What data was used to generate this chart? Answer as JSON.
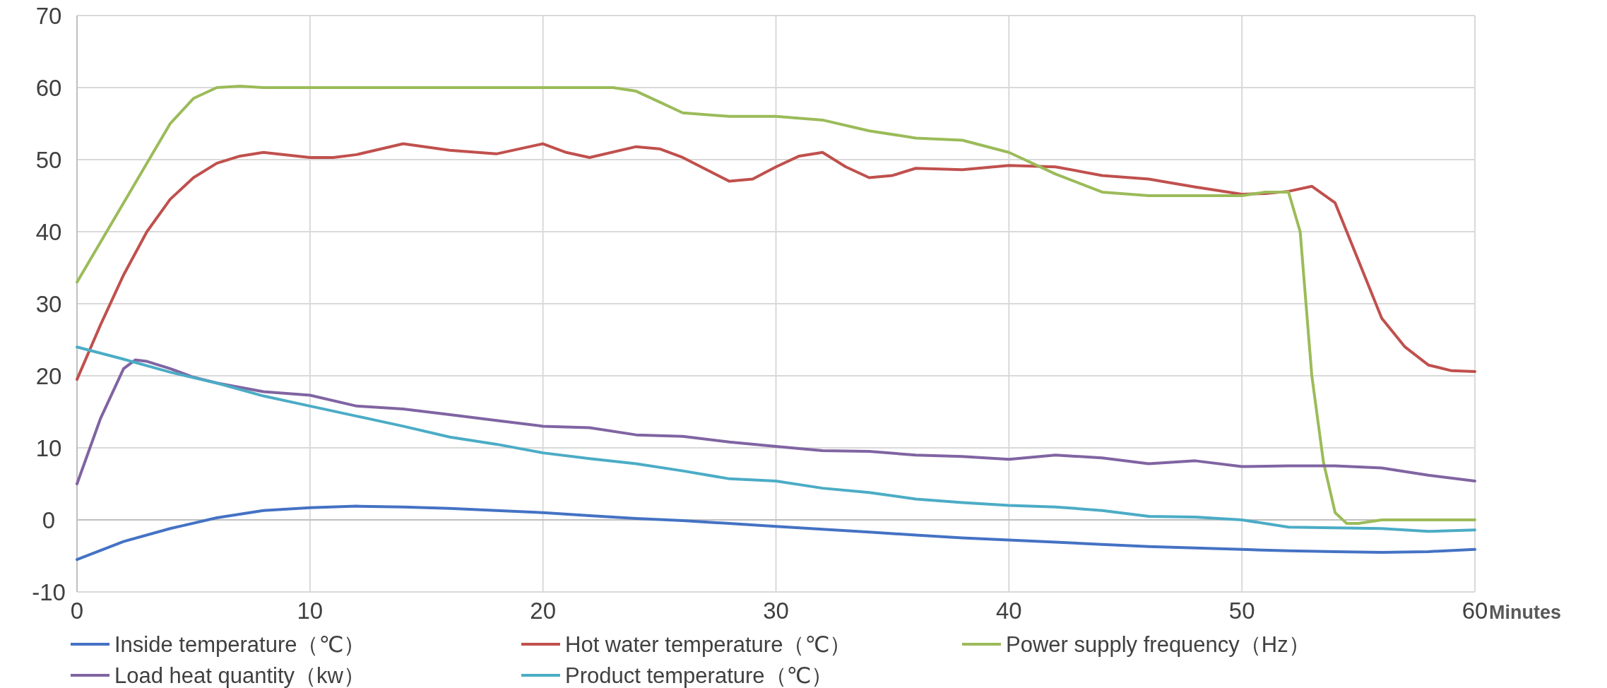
{
  "chart_data": {
    "type": "line",
    "xlabel": "Minutes",
    "xlim": [
      0,
      60
    ],
    "ylim": [
      -10,
      70
    ],
    "xticks": [
      0,
      10,
      20,
      30,
      40,
      50,
      60
    ],
    "yticks": [
      -10,
      0,
      10,
      20,
      30,
      40,
      50,
      60,
      70
    ],
    "grid": true,
    "legend": "bottom",
    "marker": "none",
    "line_style": "solid",
    "series": [
      {
        "name": "Inside temperature（℃）",
        "color": "#4472c4",
        "x": [
          0,
          2,
          4,
          6,
          8,
          10,
          12,
          14,
          16,
          18,
          20,
          22,
          24,
          26,
          28,
          30,
          32,
          34,
          36,
          38,
          40,
          42,
          44,
          46,
          48,
          50,
          52,
          54,
          56,
          58,
          60
        ],
        "values": [
          -5.5,
          -3,
          -1.2,
          0.3,
          1.3,
          1.7,
          1.9,
          1.8,
          1.6,
          1.3,
          1,
          0.6,
          0.2,
          -0.1,
          -0.5,
          -0.9,
          -1.3,
          -1.7,
          -2.1,
          -2.5,
          -2.8,
          -3.1,
          -3.4,
          -3.7,
          -3.9,
          -4.1,
          -4.3,
          -4.4,
          -4.5,
          -4.4,
          -4.1
        ]
      },
      {
        "name": "Hot water temperature（℃）",
        "color": "#c0504d",
        "x": [
          0,
          1,
          2,
          3,
          4,
          5,
          6,
          7,
          8,
          10,
          11,
          12,
          14,
          16,
          18,
          20,
          21,
          22,
          24,
          25,
          26,
          28,
          29,
          30,
          31,
          32,
          33,
          34,
          35,
          36,
          38,
          40,
          42,
          44,
          46,
          48,
          50,
          51,
          52,
          53,
          54,
          55,
          56,
          57,
          58,
          59,
          60
        ],
        "values": [
          19.5,
          27,
          34,
          40,
          44.5,
          47.5,
          49.5,
          50.5,
          51,
          50.3,
          50.3,
          50.7,
          52.2,
          51.3,
          50.8,
          52.2,
          51,
          50.3,
          51.8,
          51.5,
          50.3,
          47,
          47.3,
          49,
          50.5,
          51,
          49,
          47.5,
          47.8,
          48.8,
          48.6,
          49.2,
          49,
          47.8,
          47.3,
          46.2,
          45.2,
          45.3,
          45.6,
          46.3,
          44,
          36,
          28,
          24,
          21.5,
          20.7,
          20.6
        ]
      },
      {
        "name": "Power supply frequency（Hz）",
        "color": "#9bbb59",
        "x": [
          0,
          2,
          4,
          5,
          6,
          7,
          8,
          10,
          20,
          23,
          24,
          25,
          26,
          28,
          30,
          32,
          34,
          36,
          38,
          40,
          42,
          44,
          46,
          48,
          50,
          51,
          52,
          52.5,
          53,
          53.5,
          54,
          54.5,
          55,
          56,
          58,
          60
        ],
        "values": [
          33,
          44,
          55,
          58.5,
          60,
          60.2,
          60,
          60,
          60,
          60,
          59.5,
          58,
          56.5,
          56,
          56,
          55.5,
          54,
          53,
          52.7,
          51,
          48,
          45.5,
          45,
          45,
          45,
          45.5,
          45.5,
          40,
          20,
          8,
          1,
          -0.5,
          -0.5,
          0,
          0,
          0
        ]
      },
      {
        "name": "Load heat quantity（kw）",
        "color": "#8064a2",
        "x": [
          0,
          1,
          2,
          2.5,
          3,
          4,
          5,
          6,
          8,
          10,
          12,
          14,
          16,
          18,
          20,
          22,
          24,
          26,
          28,
          30,
          32,
          34,
          36,
          38,
          40,
          42,
          44,
          46,
          48,
          50,
          52,
          54,
          56,
          58,
          60
        ],
        "values": [
          5,
          14,
          21,
          22.2,
          22,
          21,
          19.8,
          19,
          17.8,
          17.3,
          15.8,
          15.4,
          14.6,
          13.8,
          13,
          12.8,
          11.8,
          11.6,
          10.8,
          10.2,
          9.6,
          9.5,
          9,
          8.8,
          8.4,
          9,
          8.6,
          7.8,
          8.2,
          7.4,
          7.5,
          7.5,
          7.2,
          6.2,
          5.4
        ]
      },
      {
        "name": "Product temperature（℃）",
        "color": "#4bacc6",
        "x": [
          0,
          2,
          4,
          6,
          8,
          10,
          12,
          14,
          16,
          18,
          20,
          22,
          24,
          26,
          28,
          30,
          32,
          34,
          36,
          38,
          40,
          42,
          44,
          46,
          48,
          50,
          52,
          54,
          56,
          58,
          60
        ],
        "values": [
          24,
          22.3,
          20.5,
          19,
          17.2,
          15.8,
          14.4,
          13,
          11.5,
          10.5,
          9.3,
          8.5,
          7.8,
          6.8,
          5.7,
          5.4,
          4.4,
          3.8,
          2.9,
          2.4,
          2,
          1.8,
          1.3,
          0.5,
          0.4,
          0,
          -1,
          -1.1,
          -1.2,
          -1.6,
          -1.4
        ]
      }
    ]
  }
}
